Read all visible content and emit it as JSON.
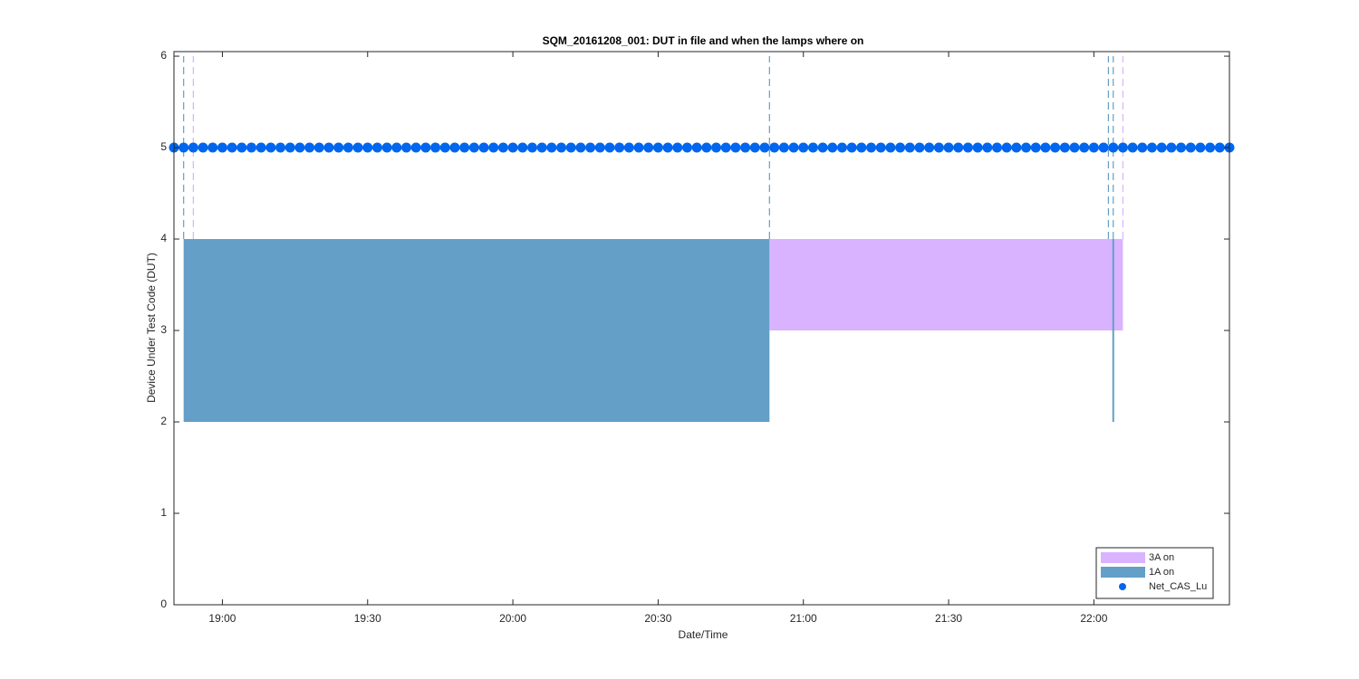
{
  "chart_data": {
    "type": "area",
    "title": "SQM_20161208_001: DUT in file and when the lamps where on",
    "xlabel": "Date/Time",
    "ylabel": "Device Under Test Code (DUT)",
    "xlim": [
      "18:50",
      "22:28"
    ],
    "xticks": [
      "19:00",
      "19:30",
      "20:00",
      "20:30",
      "21:00",
      "21:30",
      "22:00"
    ],
    "ylim": [
      0,
      6.05
    ],
    "yticks": [
      0,
      1,
      2,
      3,
      4,
      5,
      6
    ],
    "grid": false,
    "legend": "lower right",
    "series": [
      {
        "name": "3A on",
        "color": "#d9b3ff",
        "x_start": [
          "20:53"
        ],
        "x_end": [
          "22:06"
        ],
        "low": [
          3
        ],
        "high": [
          4
        ]
      },
      {
        "name": "1A on",
        "color": "#639fc6",
        "x_start": [
          "18:52",
          "22:04"
        ],
        "x_end": [
          "20:53",
          "22:04"
        ],
        "low": [
          2,
          2
        ],
        "high": [
          4,
          4
        ]
      },
      {
        "name": "Net_CAS_Lu",
        "type": "scatter",
        "color": "#0066ee",
        "x": [
          "18:50",
          "18:52",
          "18:54",
          "18:56",
          "18:58",
          "19:00",
          "19:02",
          "19:04",
          "19:06",
          "19:08",
          "19:10",
          "19:12",
          "19:14",
          "19:16",
          "19:18",
          "19:20",
          "19:22",
          "19:24",
          "19:26",
          "19:28",
          "19:30",
          "19:32",
          "19:34",
          "19:36",
          "19:38",
          "19:40",
          "19:42",
          "19:44",
          "19:46",
          "19:48",
          "19:50",
          "19:52",
          "19:54",
          "19:56",
          "19:58",
          "20:00",
          "20:02",
          "20:04",
          "20:06",
          "20:08",
          "20:10",
          "20:12",
          "20:14",
          "20:16",
          "20:18",
          "20:20",
          "20:22",
          "20:24",
          "20:26",
          "20:28",
          "20:30",
          "20:32",
          "20:34",
          "20:36",
          "20:38",
          "20:40",
          "20:42",
          "20:44",
          "20:46",
          "20:48",
          "20:50",
          "20:52",
          "20:54",
          "20:56",
          "20:58",
          "21:00",
          "21:02",
          "21:04",
          "21:06",
          "21:08",
          "21:10",
          "21:12",
          "21:14",
          "21:16",
          "21:18",
          "21:20",
          "21:22",
          "21:24",
          "21:26",
          "21:28",
          "21:30",
          "21:32",
          "21:34",
          "21:36",
          "21:38",
          "21:40",
          "21:42",
          "21:44",
          "21:46",
          "21:48",
          "21:50",
          "21:52",
          "21:54",
          "21:56",
          "21:58",
          "22:00",
          "22:02",
          "22:04",
          "22:06",
          "22:08",
          "22:10",
          "22:12",
          "22:14",
          "22:16",
          "22:18",
          "22:20",
          "22:22",
          "22:24",
          "22:26",
          "22:28"
        ],
        "values": [
          5,
          5,
          5,
          5,
          5,
          5,
          5,
          5,
          5,
          5,
          5,
          5,
          5,
          5,
          5,
          5,
          5,
          5,
          5,
          5,
          5,
          5,
          5,
          5,
          5,
          5,
          5,
          5,
          5,
          5,
          5,
          5,
          5,
          5,
          5,
          5,
          5,
          5,
          5,
          5,
          5,
          5,
          5,
          5,
          5,
          5,
          5,
          5,
          5,
          5,
          5,
          5,
          5,
          5,
          5,
          5,
          5,
          5,
          5,
          5,
          5,
          5,
          5,
          5,
          5,
          5,
          5,
          5,
          5,
          5,
          5,
          5,
          5,
          5,
          5,
          5,
          5,
          5,
          5,
          5,
          5,
          5,
          5,
          5,
          5,
          5,
          5,
          5,
          5,
          5,
          5,
          5,
          5,
          5,
          5,
          5,
          5,
          5,
          5,
          5,
          5,
          5,
          5,
          5,
          5,
          5,
          5,
          5,
          5,
          5
        ]
      }
    ],
    "vlines": [
      {
        "x": "18:52",
        "ylim": [
          4,
          6
        ],
        "color": "#639fc6"
      },
      {
        "x": "18:54",
        "ylim": [
          4,
          6
        ],
        "color": "#d9b3ff"
      },
      {
        "x": "20:53",
        "ylim": [
          4,
          6
        ],
        "color": "#639fc6"
      },
      {
        "x": "22:03",
        "ylim": [
          4,
          6
        ],
        "color": "#639fc6"
      },
      {
        "x": "22:04",
        "ylim": [
          4,
          6
        ],
        "color": "#639fc6"
      },
      {
        "x": "22:06",
        "ylim": [
          4,
          6
        ],
        "color": "#d9b3ff"
      }
    ]
  }
}
